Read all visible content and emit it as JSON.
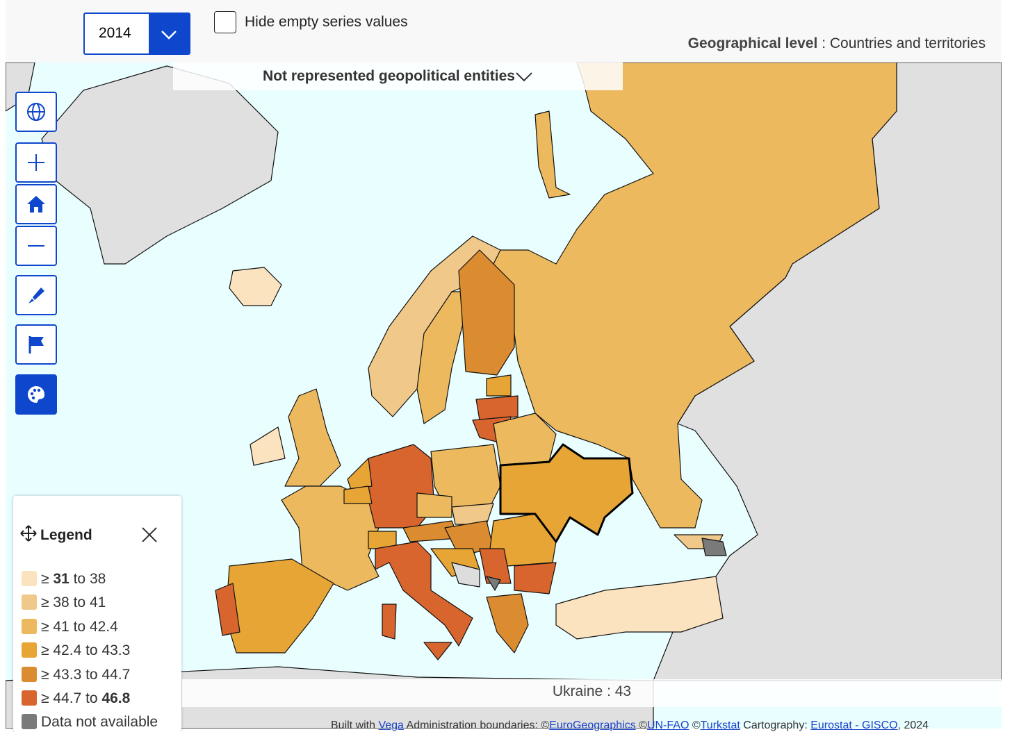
{
  "toolbar": {
    "year": "2014",
    "hide_empty_label": "Hide empty series values",
    "geo_level_label": "Geographical level",
    "geo_level_value": ": Countries and territories"
  },
  "banner": "Not represented geopolitical entities",
  "legend": {
    "title": "Legend",
    "items": [
      {
        "color": "#fbe3c0",
        "prefix": "≥",
        "low": 31,
        "to": "to",
        "high": 38
      },
      {
        "color": "#f0c98a",
        "prefix": "≥",
        "low": 38,
        "to": "to",
        "high": 41
      },
      {
        "color": "#ecb95f",
        "prefix": "≥",
        "low": 41,
        "to": "to",
        "high": 42.4
      },
      {
        "color": "#e6a535",
        "prefix": "≥",
        "low": 42.4,
        "to": "to",
        "high": 43.3
      },
      {
        "color": "#dc8c30",
        "prefix": "≥",
        "low": 43.3,
        "to": "to",
        "high": 44.7
      },
      {
        "color": "#d8652e",
        "prefix": "≥",
        "low": 44.7,
        "to": "to",
        "high": 46.8
      }
    ],
    "not_available": {
      "color": "#7a7a7a",
      "label": "Data not available"
    }
  },
  "tooltip": "Ukraine : 43",
  "credits": [
    {
      "text": "Built with "
    },
    {
      "text": "Vega",
      "link": true
    },
    {
      "text": " Administration boundaries: ©"
    },
    {
      "text": "EuroGeographics",
      "link": true
    },
    {
      "text": " ©"
    },
    {
      "text": "UN-FAO",
      "link": true
    },
    {
      "text": " ©"
    },
    {
      "text": "Turkstat",
      "link": true
    },
    {
      "text": " Cartography: "
    },
    {
      "text": "Eurostat - GISCO",
      "link": true
    },
    {
      "text": ", 2024"
    }
  ]
}
